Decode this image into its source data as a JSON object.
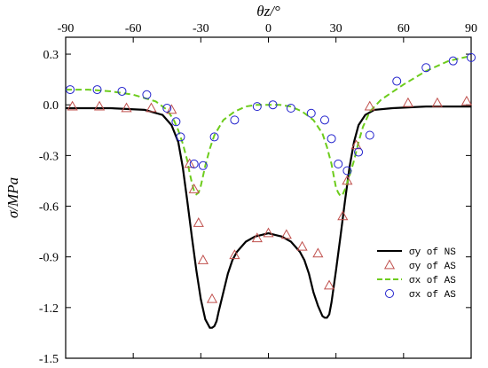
{
  "chart_data": {
    "type": "line",
    "xlabel": "θz/°",
    "ylabel": "σ/MPa",
    "xlim": [
      -90,
      90
    ],
    "ylim": [
      -1.5,
      0.4
    ],
    "x_ticks": [
      -90,
      -60,
      -30,
      0,
      30,
      60,
      90
    ],
    "x_tick_labels": [
      "-90",
      "-60",
      "-30",
      "0",
      "30",
      "60",
      "90"
    ],
    "y_ticks": [
      0.3,
      0.0,
      -0.3,
      -0.6,
      -0.9,
      -1.2,
      -1.5
    ],
    "y_tick_labels": [
      "0.3",
      "0.0",
      "-0.3",
      "-0.6",
      "-0.9",
      "-1.2",
      "-1.5"
    ],
    "x_axis_position": "top",
    "grid": false,
    "legend_position": "bottom-right",
    "series": [
      {
        "name": "σy of NS",
        "style": "solid-line",
        "color": "#000000",
        "x": [
          -90,
          -70,
          -55,
          -47,
          -43,
          -40,
          -38,
          -36,
          -34,
          -32,
          -30,
          -28,
          -26,
          -25,
          -24,
          -23,
          -22,
          -20,
          -18,
          -16,
          -14,
          -10,
          -6,
          -3,
          0,
          3,
          6,
          10,
          14,
          16,
          18,
          20,
          22,
          24,
          25,
          26,
          27,
          28,
          30,
          32,
          34,
          36,
          38,
          40,
          43,
          47,
          55,
          70,
          90
        ],
        "y": [
          -0.02,
          -0.02,
          -0.03,
          -0.06,
          -0.12,
          -0.22,
          -0.37,
          -0.57,
          -0.78,
          -0.98,
          -1.15,
          -1.27,
          -1.32,
          -1.32,
          -1.31,
          -1.28,
          -1.22,
          -1.11,
          -1.0,
          -0.92,
          -0.87,
          -0.81,
          -0.78,
          -0.77,
          -0.76,
          -0.77,
          -0.78,
          -0.81,
          -0.87,
          -0.92,
          -1.0,
          -1.11,
          -1.19,
          -1.25,
          -1.26,
          -1.26,
          -1.24,
          -1.17,
          -0.98,
          -0.78,
          -0.57,
          -0.37,
          -0.22,
          -0.12,
          -0.06,
          -0.03,
          -0.02,
          -0.01,
          -0.01
        ]
      },
      {
        "name": "σy of AS",
        "style": "triangle-markers",
        "color": "#c0504d",
        "x": [
          -87,
          -75,
          -63,
          -52,
          -43,
          -35,
          -33,
          -31,
          -29,
          -25,
          -15,
          -5,
          0,
          8,
          15,
          22,
          27,
          33,
          35,
          39,
          45,
          62,
          75,
          88
        ],
        "y": [
          -0.01,
          -0.01,
          -0.02,
          -0.02,
          -0.03,
          -0.35,
          -0.5,
          -0.7,
          -0.92,
          -1.15,
          -0.89,
          -0.79,
          -0.76,
          -0.77,
          -0.84,
          -0.88,
          -1.07,
          -0.66,
          -0.45,
          -0.24,
          -0.01,
          0.01,
          0.01,
          0.02
        ]
      },
      {
        "name": "σx of AS",
        "style": "dashed-line",
        "color": "#6dcc1c",
        "x": [
          -90,
          -80,
          -70,
          -60,
          -50,
          -45,
          -42,
          -40,
          -38,
          -36,
          -35,
          -34,
          -33,
          -32,
          -31,
          -30,
          -29,
          -28,
          -26,
          -24,
          -20,
          -15,
          -10,
          -5,
          0,
          5,
          10,
          15,
          20,
          24,
          26,
          28,
          29,
          30,
          31,
          32,
          33,
          34,
          36,
          38,
          40,
          42,
          45,
          50,
          60,
          70,
          80,
          90
        ],
        "y": [
          0.09,
          0.09,
          0.08,
          0.06,
          0.02,
          -0.03,
          -0.09,
          -0.15,
          -0.23,
          -0.33,
          -0.4,
          -0.46,
          -0.51,
          -0.53,
          -0.52,
          -0.48,
          -0.42,
          -0.36,
          -0.26,
          -0.18,
          -0.09,
          -0.04,
          -0.01,
          -0.0,
          0.0,
          -0.0,
          -0.01,
          -0.04,
          -0.09,
          -0.17,
          -0.25,
          -0.35,
          -0.42,
          -0.49,
          -0.52,
          -0.54,
          -0.53,
          -0.5,
          -0.42,
          -0.33,
          -0.22,
          -0.13,
          -0.04,
          0.03,
          0.12,
          0.2,
          0.26,
          0.29
        ]
      },
      {
        "name": "σx of AS",
        "style": "circle-markers",
        "color": "#2222cc",
        "x": [
          -88,
          -76,
          -65,
          -54,
          -45,
          -41,
          -39,
          -33,
          -29,
          -24,
          -15,
          -5,
          2,
          10,
          19,
          25,
          28,
          31,
          35,
          40,
          45,
          57,
          70,
          82,
          90
        ],
        "y": [
          0.09,
          0.09,
          0.08,
          0.06,
          -0.02,
          -0.1,
          -0.19,
          -0.35,
          -0.36,
          -0.19,
          -0.09,
          -0.01,
          -0.0,
          -0.02,
          -0.05,
          -0.09,
          -0.2,
          -0.35,
          -0.39,
          -0.28,
          -0.18,
          0.14,
          0.22,
          0.26,
          0.28
        ]
      }
    ]
  }
}
